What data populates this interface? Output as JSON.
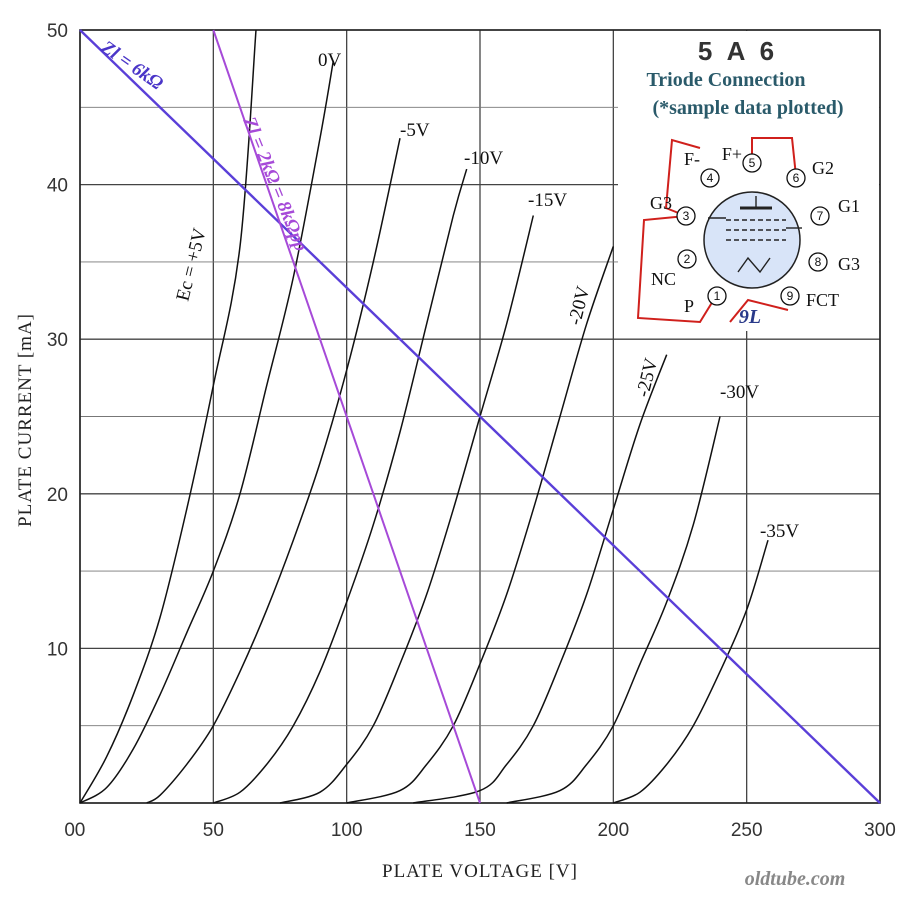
{
  "chart_data": {
    "type": "line",
    "title": "5 A 6",
    "subtitle_line1": "Triode Connection",
    "subtitle_line2": "(*sample data plotted)",
    "xlabel": "PLATE  VOLTAGE  [V]",
    "ylabel": "PLATE  CURRENT  [mA]",
    "xlim": [
      0,
      300
    ],
    "ylim": [
      0,
      50
    ],
    "x_ticks": [
      "0",
      "50",
      "100",
      "150",
      "200",
      "250",
      "300"
    ],
    "y_ticks": [
      "0",
      "10",
      "20",
      "30",
      "40",
      "50"
    ],
    "grid": true,
    "series": [
      {
        "name": "Ec = +5V",
        "points": [
          [
            0,
            0
          ],
          [
            10,
            3
          ],
          [
            20,
            7
          ],
          [
            30,
            12
          ],
          [
            40,
            19
          ],
          [
            50,
            27
          ],
          [
            60,
            36
          ],
          [
            66,
            50
          ]
        ]
      },
      {
        "name": "0V",
        "points": [
          [
            0,
            0
          ],
          [
            10,
            1
          ],
          [
            20,
            3.5
          ],
          [
            30,
            7
          ],
          [
            40,
            11
          ],
          [
            50,
            15
          ],
          [
            60,
            20
          ],
          [
            70,
            27
          ],
          [
            80,
            34
          ],
          [
            90,
            43
          ],
          [
            95,
            48
          ]
        ]
      },
      {
        "name": "-5V",
        "points": [
          [
            25,
            0
          ],
          [
            30,
            0.5
          ],
          [
            40,
            2.5
          ],
          [
            50,
            5
          ],
          [
            60,
            8.5
          ],
          [
            70,
            12.5
          ],
          [
            80,
            17
          ],
          [
            90,
            22
          ],
          [
            100,
            28
          ],
          [
            110,
            35
          ],
          [
            120,
            43
          ]
        ]
      },
      {
        "name": "-10V",
        "points": [
          [
            50,
            0
          ],
          [
            60,
            0.7
          ],
          [
            70,
            2.5
          ],
          [
            80,
            5
          ],
          [
            90,
            8.5
          ],
          [
            100,
            13
          ],
          [
            110,
            18
          ],
          [
            120,
            24
          ],
          [
            130,
            31
          ],
          [
            140,
            38
          ],
          [
            145,
            41
          ]
        ]
      },
      {
        "name": "-15V",
        "points": [
          [
            75,
            0
          ],
          [
            90,
            0.7
          ],
          [
            100,
            2.5
          ],
          [
            110,
            5
          ],
          [
            120,
            9
          ],
          [
            130,
            13.5
          ],
          [
            140,
            19
          ],
          [
            150,
            25
          ],
          [
            160,
            31
          ],
          [
            170,
            38
          ]
        ]
      },
      {
        "name": "-20V",
        "points": [
          [
            100,
            0
          ],
          [
            120,
            0.8
          ],
          [
            130,
            2.5
          ],
          [
            140,
            5
          ],
          [
            150,
            9
          ],
          [
            160,
            13.5
          ],
          [
            170,
            19
          ],
          [
            180,
            25
          ],
          [
            190,
            31
          ],
          [
            200,
            36
          ]
        ]
      },
      {
        "name": "-25V",
        "points": [
          [
            125,
            0
          ],
          [
            150,
            0.8
          ],
          [
            160,
            2.5
          ],
          [
            170,
            5
          ],
          [
            180,
            9
          ],
          [
            190,
            13.5
          ],
          [
            200,
            19
          ],
          [
            210,
            24.5
          ],
          [
            220,
            29
          ]
        ]
      },
      {
        "name": "-30V",
        "points": [
          [
            160,
            0
          ],
          [
            180,
            0.8
          ],
          [
            190,
            2.5
          ],
          [
            200,
            5
          ],
          [
            210,
            9
          ],
          [
            220,
            13
          ],
          [
            230,
            18
          ],
          [
            240,
            25
          ]
        ]
      },
      {
        "name": "-35V",
        "points": [
          [
            200,
            0
          ],
          [
            210,
            0.7
          ],
          [
            220,
            2.5
          ],
          [
            230,
            5
          ],
          [
            240,
            8.5
          ],
          [
            250,
            12.5
          ],
          [
            258,
            17
          ]
        ]
      }
    ],
    "load_lines": [
      {
        "name": "Zl = 6kΩ",
        "color": "#5a3fd8",
        "points": [
          [
            0,
            50
          ],
          [
            300,
            0
          ]
        ]
      },
      {
        "name": "Zl = 2kΩ = 8kΩpp",
        "color": "#a64ad8",
        "points": [
          [
            50,
            50
          ],
          [
            150,
            0
          ]
        ]
      }
    ]
  },
  "inset": {
    "base_label": "9L",
    "pins": [
      {
        "num": "1",
        "label": "P"
      },
      {
        "num": "2",
        "label": "NC"
      },
      {
        "num": "3",
        "label": "G3"
      },
      {
        "num": "4",
        "label": "F-"
      },
      {
        "num": "5",
        "label": "F+"
      },
      {
        "num": "6",
        "label": "G2"
      },
      {
        "num": "7",
        "label": "G1"
      },
      {
        "num": "8",
        "label": "G3"
      },
      {
        "num": "9",
        "label": "FCT"
      }
    ],
    "wire_color": "#d0201c"
  },
  "watermark": "oldtube.com"
}
